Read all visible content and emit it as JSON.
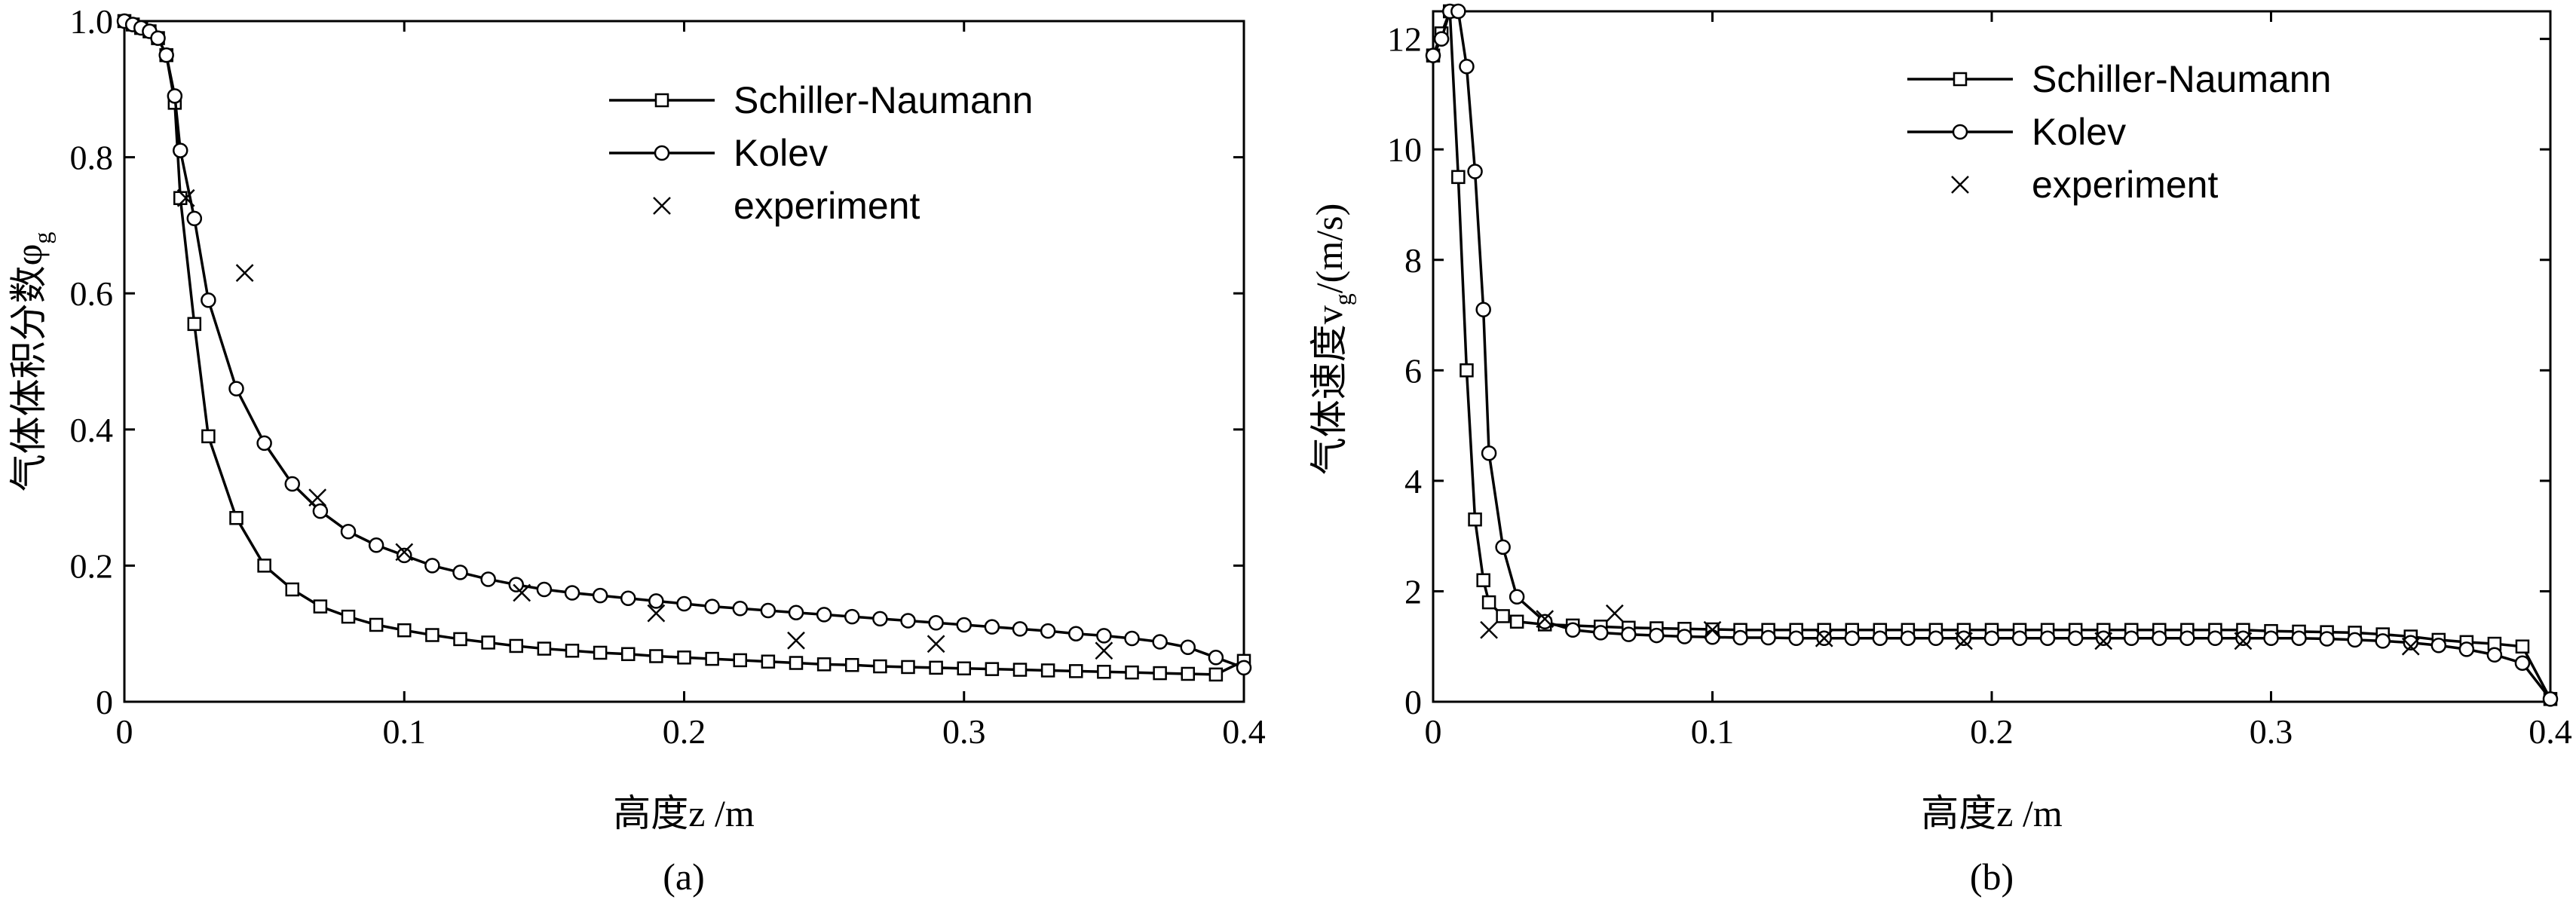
{
  "chart_data": [
    {
      "type": "line",
      "panel_label": "(a)",
      "xlabel": "高度z /m",
      "ylabel": "气体体积分数φ",
      "ylabel_sub": "g",
      "xlim": [
        0,
        0.4
      ],
      "ylim": [
        0,
        1.0
      ],
      "x_ticks": [
        0,
        0.1,
        0.2,
        0.3,
        0.4
      ],
      "x_tick_labels": [
        "0",
        "0.1",
        "0.2",
        "0.3",
        "0.4"
      ],
      "y_ticks": [
        0,
        0.2,
        0.4,
        0.6,
        0.8,
        1.0
      ],
      "y_tick_labels": [
        "0",
        "0.2",
        "0.4",
        "0.6",
        "0.8",
        "1.0"
      ],
      "grid": false,
      "legend_position": "top-right",
      "series": [
        {
          "name": "Schiller-Naumann",
          "marker": "square",
          "x": [
            0.0,
            0.003,
            0.006,
            0.009,
            0.012,
            0.015,
            0.018,
            0.02,
            0.025,
            0.03,
            0.04,
            0.05,
            0.06,
            0.07,
            0.08,
            0.09,
            0.1,
            0.11,
            0.12,
            0.13,
            0.14,
            0.15,
            0.16,
            0.17,
            0.18,
            0.19,
            0.2,
            0.21,
            0.22,
            0.23,
            0.24,
            0.25,
            0.26,
            0.27,
            0.28,
            0.29,
            0.3,
            0.31,
            0.32,
            0.33,
            0.34,
            0.35,
            0.36,
            0.37,
            0.38,
            0.39,
            0.4
          ],
          "y": [
            1.0,
            0.995,
            0.99,
            0.985,
            0.975,
            0.95,
            0.88,
            0.74,
            0.555,
            0.39,
            0.27,
            0.2,
            0.165,
            0.14,
            0.125,
            0.113,
            0.105,
            0.098,
            0.092,
            0.087,
            0.082,
            0.078,
            0.075,
            0.072,
            0.07,
            0.067,
            0.065,
            0.063,
            0.061,
            0.059,
            0.057,
            0.055,
            0.054,
            0.052,
            0.051,
            0.05,
            0.049,
            0.048,
            0.047,
            0.046,
            0.045,
            0.044,
            0.043,
            0.042,
            0.041,
            0.04,
            0.06
          ]
        },
        {
          "name": "Kolev",
          "marker": "circle",
          "x": [
            0.0,
            0.003,
            0.006,
            0.009,
            0.012,
            0.015,
            0.018,
            0.02,
            0.025,
            0.03,
            0.04,
            0.05,
            0.06,
            0.07,
            0.08,
            0.09,
            0.1,
            0.11,
            0.12,
            0.13,
            0.14,
            0.15,
            0.16,
            0.17,
            0.18,
            0.19,
            0.2,
            0.21,
            0.22,
            0.23,
            0.24,
            0.25,
            0.26,
            0.27,
            0.28,
            0.29,
            0.3,
            0.31,
            0.32,
            0.33,
            0.34,
            0.35,
            0.36,
            0.37,
            0.38,
            0.39,
            0.4
          ],
          "y": [
            1.0,
            0.995,
            0.99,
            0.985,
            0.975,
            0.95,
            0.89,
            0.81,
            0.71,
            0.59,
            0.46,
            0.38,
            0.32,
            0.28,
            0.25,
            0.23,
            0.215,
            0.2,
            0.19,
            0.18,
            0.172,
            0.165,
            0.16,
            0.156,
            0.152,
            0.148,
            0.144,
            0.14,
            0.137,
            0.134,
            0.131,
            0.128,
            0.125,
            0.122,
            0.119,
            0.116,
            0.113,
            0.11,
            0.107,
            0.104,
            0.1,
            0.097,
            0.093,
            0.088,
            0.08,
            0.065,
            0.05
          ]
        },
        {
          "name": "experiment",
          "marker": "x",
          "x": [
            0.022,
            0.043,
            0.069,
            0.1,
            0.142,
            0.19,
            0.24,
            0.29,
            0.35
          ],
          "y": [
            0.74,
            0.63,
            0.3,
            0.22,
            0.16,
            0.13,
            0.09,
            0.085,
            0.075
          ]
        }
      ]
    },
    {
      "type": "line",
      "panel_label": "(b)",
      "xlabel": "高度z /m",
      "ylabel": "气体速度v",
      "ylabel_sub": "g",
      "ylabel_unit": "/(m/s)",
      "xlim": [
        0,
        0.4
      ],
      "ylim": [
        0,
        12.5
      ],
      "x_ticks": [
        0,
        0.1,
        0.2,
        0.3,
        0.4
      ],
      "x_tick_labels": [
        "0",
        "0.1",
        "0.2",
        "0.3",
        "0.4"
      ],
      "y_ticks": [
        0,
        2,
        4,
        6,
        8,
        10,
        12
      ],
      "y_tick_labels": [
        "0",
        "2",
        "4",
        "6",
        "8",
        "10",
        "12"
      ],
      "grid": false,
      "legend_position": "top-right",
      "series": [
        {
          "name": "Schiller-Naumann",
          "marker": "square",
          "x": [
            0.0,
            0.003,
            0.006,
            0.009,
            0.012,
            0.015,
            0.018,
            0.02,
            0.025,
            0.03,
            0.04,
            0.05,
            0.06,
            0.07,
            0.08,
            0.09,
            0.1,
            0.11,
            0.12,
            0.13,
            0.14,
            0.15,
            0.16,
            0.17,
            0.18,
            0.19,
            0.2,
            0.21,
            0.22,
            0.23,
            0.24,
            0.25,
            0.26,
            0.27,
            0.28,
            0.29,
            0.3,
            0.31,
            0.32,
            0.33,
            0.34,
            0.35,
            0.36,
            0.37,
            0.38,
            0.39,
            0.4
          ],
          "y": [
            11.7,
            12.1,
            12.5,
            9.5,
            6.0,
            3.3,
            2.2,
            1.8,
            1.55,
            1.45,
            1.4,
            1.38,
            1.36,
            1.34,
            1.33,
            1.32,
            1.31,
            1.3,
            1.3,
            1.3,
            1.3,
            1.3,
            1.3,
            1.3,
            1.3,
            1.3,
            1.3,
            1.3,
            1.3,
            1.3,
            1.3,
            1.3,
            1.3,
            1.3,
            1.3,
            1.3,
            1.28,
            1.27,
            1.26,
            1.25,
            1.22,
            1.18,
            1.12,
            1.08,
            1.05,
            1.0,
            0.05
          ]
        },
        {
          "name": "Kolev",
          "marker": "circle",
          "x": [
            0.0,
            0.003,
            0.006,
            0.009,
            0.012,
            0.015,
            0.018,
            0.02,
            0.025,
            0.03,
            0.04,
            0.05,
            0.06,
            0.07,
            0.08,
            0.09,
            0.1,
            0.11,
            0.12,
            0.13,
            0.14,
            0.15,
            0.16,
            0.17,
            0.18,
            0.19,
            0.2,
            0.21,
            0.22,
            0.23,
            0.24,
            0.25,
            0.26,
            0.27,
            0.28,
            0.29,
            0.3,
            0.31,
            0.32,
            0.33,
            0.34,
            0.35,
            0.36,
            0.37,
            0.38,
            0.39,
            0.4
          ],
          "y": [
            11.7,
            12.0,
            12.5,
            12.5,
            11.5,
            9.6,
            7.1,
            4.5,
            2.8,
            1.9,
            1.45,
            1.3,
            1.25,
            1.22,
            1.2,
            1.18,
            1.17,
            1.16,
            1.16,
            1.15,
            1.15,
            1.15,
            1.15,
            1.15,
            1.15,
            1.15,
            1.15,
            1.15,
            1.15,
            1.15,
            1.15,
            1.15,
            1.15,
            1.15,
            1.15,
            1.15,
            1.15,
            1.15,
            1.14,
            1.12,
            1.1,
            1.07,
            1.02,
            0.95,
            0.85,
            0.7,
            0.05
          ]
        },
        {
          "name": "experiment",
          "marker": "x",
          "x": [
            0.02,
            0.04,
            0.065,
            0.1,
            0.14,
            0.19,
            0.24,
            0.29,
            0.35
          ],
          "y": [
            1.3,
            1.5,
            1.6,
            1.3,
            1.15,
            1.1,
            1.1,
            1.1,
            1.0
          ]
        }
      ]
    }
  ]
}
